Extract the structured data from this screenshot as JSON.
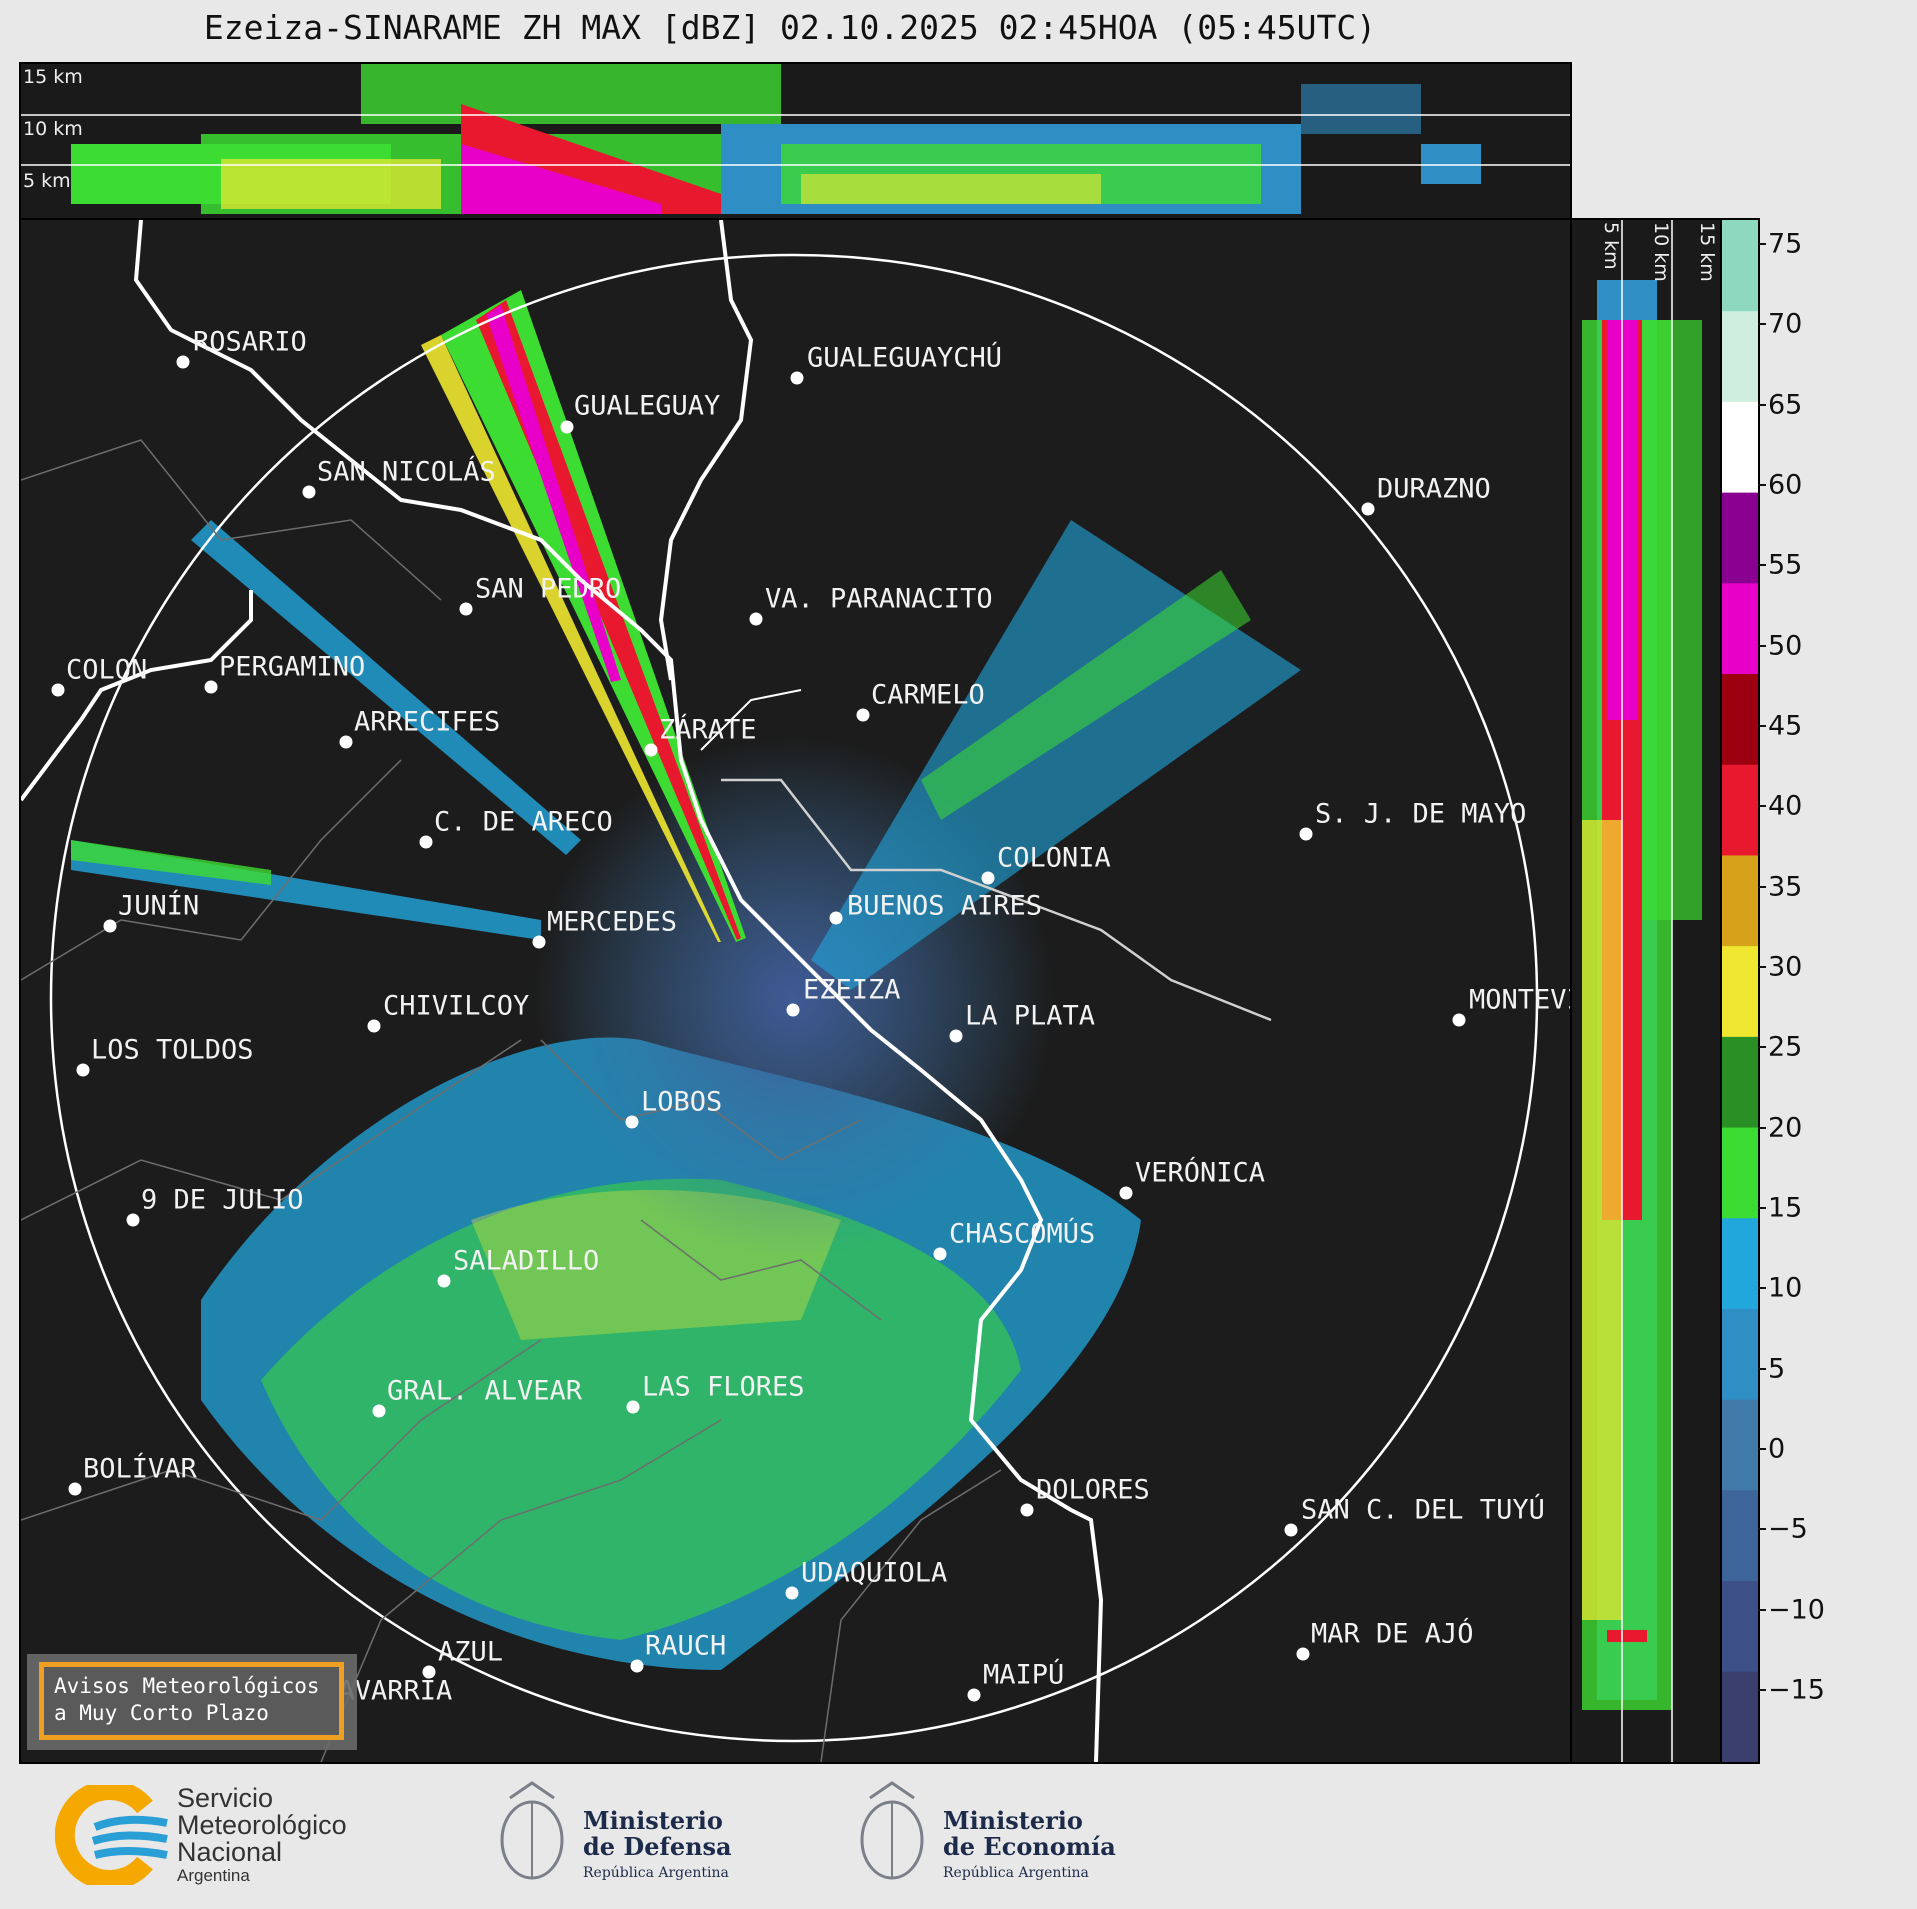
{
  "title": "Ezeiza-SINARAME ZH MAX [dBZ] 02.10.2025 02:45HOA (05:45UTC)",
  "top_panel": {
    "height_labels": [
      "15 km",
      "10 km",
      "5 km"
    ]
  },
  "right_panel": {
    "height_labels": [
      "5 km",
      "10 km",
      "15 km"
    ]
  },
  "colorbar": {
    "ticks": [
      "75",
      "70",
      "65",
      "60",
      "55",
      "50",
      "45",
      "40",
      "35",
      "30",
      "25",
      "20",
      "15",
      "10",
      "5",
      "0",
      "−5",
      "−10",
      "−15"
    ],
    "colors": [
      "#3a3f6e",
      "#3c4f86",
      "#3e6599",
      "#3f7aa9",
      "#2f8ec4",
      "#22a7dd",
      "#3ddc32",
      "#2a8f24",
      "#f0e830",
      "#d6a21a",
      "#e8182e",
      "#9c0010",
      "#e800c8",
      "#8a0090",
      "#ffffff",
      "#cfeee0",
      "#8fd8c0"
    ]
  },
  "cities": [
    {
      "name": "ROSARIO"
    },
    {
      "name": "GUALEGUAYCHÚ"
    },
    {
      "name": "GUALEGUAY"
    },
    {
      "name": "SAN NICOLÁS"
    },
    {
      "name": "DURAZNO"
    },
    {
      "name": "SAN PEDRO"
    },
    {
      "name": "VA. PARANACITO"
    },
    {
      "name": "COLON"
    },
    {
      "name": "PERGAMINO"
    },
    {
      "name": "CARMELO"
    },
    {
      "name": "ARRECIFES"
    },
    {
      "name": "ZÁRATE"
    },
    {
      "name": "S. J. DE MAYO"
    },
    {
      "name": "C. DE ARECO"
    },
    {
      "name": "COLONIA"
    },
    {
      "name": "JUNÍN"
    },
    {
      "name": "BUENOS AIRES"
    },
    {
      "name": "MERCEDES"
    },
    {
      "name": "EZEIZA"
    },
    {
      "name": "MONTEVIDEO"
    },
    {
      "name": "CHIVILCOY"
    },
    {
      "name": "LA PLATA"
    },
    {
      "name": "LOS TOLDOS"
    },
    {
      "name": "LOBOS"
    },
    {
      "name": "VERÓNICA"
    },
    {
      "name": "9 DE JULIO"
    },
    {
      "name": "CHASCOMÚS"
    },
    {
      "name": "SALADILLO"
    },
    {
      "name": "GRAL. ALVEAR"
    },
    {
      "name": "LAS FLORES"
    },
    {
      "name": "BOLÍVAR"
    },
    {
      "name": "DOLORES"
    },
    {
      "name": "SAN C. DEL TUYÚ"
    },
    {
      "name": "UDAQUIOLA"
    },
    {
      "name": "MAR DE AJÓ"
    },
    {
      "name": "AZUL"
    },
    {
      "name": "RAUCH"
    },
    {
      "name": "OLAVARRÍA"
    },
    {
      "name": "MAIPÚ"
    }
  ],
  "avisos": {
    "line1": "Avisos Meteorológicos",
    "line2": "a Muy Corto Plazo"
  },
  "logos": {
    "smn": {
      "l1": "Servicio",
      "l2": "Meteorológico",
      "l3": "Nacional",
      "l4": "Argentina"
    },
    "defensa": {
      "l1": "Ministerio",
      "l2": "de Defensa",
      "l3": "República Argentina"
    },
    "economia": {
      "l1": "Ministerio",
      "l2": "de Economía",
      "l3": "República Argentina"
    }
  }
}
